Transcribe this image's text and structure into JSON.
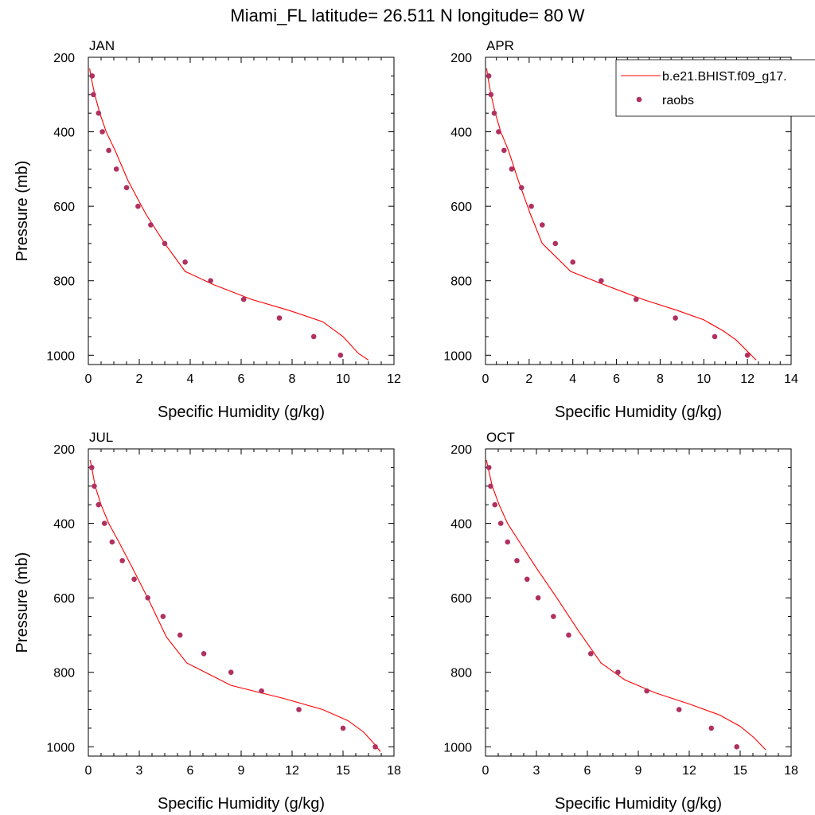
{
  "figure": {
    "title": "Miami_FL  latitude= 26.511 N longitude= 80 W",
    "legend": {
      "placement": "top-right, overlapping APR panel",
      "model_label": "b.e21.BHIST.f09_g17.",
      "obs_label": "raobs"
    },
    "colors": {
      "model_line": "#ff0000",
      "obs_marker": "#b03060"
    }
  },
  "chart_data": [
    {
      "type": "line+scatter",
      "panel_label": "JAN",
      "xlabel": "Specific Humidity (g/kg)",
      "ylabel": "Pressure (mb)",
      "xlim": [
        0,
        12
      ],
      "ylim": [
        200,
        1025
      ],
      "y_inverted": true,
      "xticks": [
        0,
        2,
        4,
        6,
        8,
        10,
        12
      ],
      "yticks": [
        200,
        400,
        600,
        800,
        1000
      ],
      "model": {
        "name": "b.e21.BHIST.f09_g17.",
        "x": [
          0.05,
          0.1,
          0.25,
          0.45,
          0.7,
          1.05,
          1.55,
          2.25,
          3.0,
          3.8,
          4.9,
          6.4,
          7.9,
          9.2,
          10.0,
          10.6,
          11.0
        ],
        "p": [
          230,
          250,
          300,
          350,
          400,
          450,
          530,
          620,
          700,
          775,
          810,
          850,
          880,
          910,
          950,
          995,
          1013
        ]
      },
      "obs": {
        "name": "raobs",
        "x": [
          0.15,
          0.2,
          0.4,
          0.55,
          0.8,
          1.1,
          1.5,
          1.95,
          2.45,
          3.0,
          3.8,
          4.8,
          6.1,
          7.5,
          8.85,
          9.9
        ],
        "p": [
          250,
          300,
          350,
          400,
          450,
          500,
          550,
          600,
          650,
          700,
          750,
          800,
          850,
          900,
          950,
          1000
        ]
      }
    },
    {
      "type": "line+scatter",
      "panel_label": "APR",
      "xlabel": "Specific Humidity (g/kg)",
      "ylabel": "",
      "xlim": [
        0,
        14
      ],
      "ylim": [
        200,
        1025
      ],
      "y_inverted": true,
      "xticks": [
        0,
        2,
        4,
        6,
        8,
        10,
        12,
        14
      ],
      "yticks": [
        200,
        400,
        600,
        800,
        1000
      ],
      "model": {
        "name": "b.e21.BHIST.f09_g17.",
        "x": [
          0.05,
          0.1,
          0.25,
          0.45,
          0.7,
          1.05,
          1.5,
          2.05,
          2.6,
          3.3,
          3.9,
          5.4,
          7.2,
          8.8,
          10.0,
          10.9,
          11.5,
          12.4
        ],
        "p": [
          230,
          250,
          300,
          350,
          400,
          450,
          530,
          620,
          700,
          740,
          775,
          810,
          850,
          880,
          905,
          935,
          960,
          1013
        ]
      },
      "obs": {
        "name": "raobs",
        "x": [
          0.15,
          0.25,
          0.4,
          0.6,
          0.85,
          1.2,
          1.65,
          2.1,
          2.6,
          3.2,
          4.0,
          5.3,
          6.9,
          8.7,
          10.5,
          12.0
        ],
        "p": [
          250,
          300,
          350,
          400,
          450,
          500,
          550,
          600,
          650,
          700,
          750,
          800,
          850,
          900,
          950,
          1000
        ]
      }
    },
    {
      "type": "line+scatter",
      "panel_label": "JUL",
      "xlabel": "Specific Humidity (g/kg)",
      "ylabel": "Pressure (mb)",
      "xlim": [
        0,
        18
      ],
      "ylim": [
        200,
        1025
      ],
      "y_inverted": true,
      "xticks": [
        0,
        3,
        6,
        9,
        12,
        15,
        18
      ],
      "yticks": [
        200,
        400,
        600,
        800,
        1000
      ],
      "model": {
        "name": "b.e21.BHIST.f09_g17.",
        "x": [
          0.1,
          0.2,
          0.4,
          0.75,
          1.2,
          1.8,
          2.6,
          3.6,
          4.6,
          5.8,
          8.4,
          11.5,
          13.8,
          15.3,
          16.2,
          16.8,
          17.2
        ],
        "p": [
          230,
          250,
          300,
          350,
          400,
          450,
          520,
          610,
          705,
          775,
          835,
          870,
          900,
          930,
          960,
          990,
          1013
        ]
      },
      "obs": {
        "name": "raobs",
        "x": [
          0.2,
          0.35,
          0.6,
          0.95,
          1.4,
          2.0,
          2.7,
          3.5,
          4.4,
          5.4,
          6.8,
          8.4,
          10.2,
          12.4,
          15.0,
          16.9
        ],
        "p": [
          250,
          300,
          350,
          400,
          450,
          500,
          550,
          600,
          650,
          700,
          750,
          800,
          850,
          900,
          950,
          1000
        ]
      }
    },
    {
      "type": "line+scatter",
      "panel_label": "OCT",
      "xlabel": "Specific Humidity (g/kg)",
      "ylabel": "",
      "xlim": [
        0,
        18
      ],
      "ylim": [
        200,
        1025
      ],
      "y_inverted": true,
      "xticks": [
        0,
        3,
        6,
        9,
        12,
        15,
        18
      ],
      "yticks": [
        200,
        400,
        600,
        800,
        1000
      ],
      "model": {
        "name": "b.e21.BHIST.f09_g17.",
        "x": [
          0.05,
          0.15,
          0.4,
          0.8,
          1.3,
          2.0,
          3.0,
          4.2,
          5.5,
          6.8,
          8.2,
          10.0,
          12.0,
          13.8,
          15.0,
          15.8,
          16.5
        ],
        "p": [
          230,
          250,
          300,
          350,
          400,
          450,
          520,
          600,
          690,
          775,
          820,
          855,
          885,
          915,
          945,
          975,
          1008
        ]
      },
      "obs": {
        "name": "raobs",
        "x": [
          0.2,
          0.3,
          0.55,
          0.9,
          1.3,
          1.85,
          2.45,
          3.1,
          4.0,
          4.9,
          6.2,
          7.8,
          9.5,
          11.4,
          13.3,
          14.8
        ],
        "p": [
          250,
          300,
          350,
          400,
          450,
          500,
          550,
          600,
          650,
          700,
          750,
          800,
          850,
          900,
          950,
          1000
        ]
      }
    }
  ]
}
